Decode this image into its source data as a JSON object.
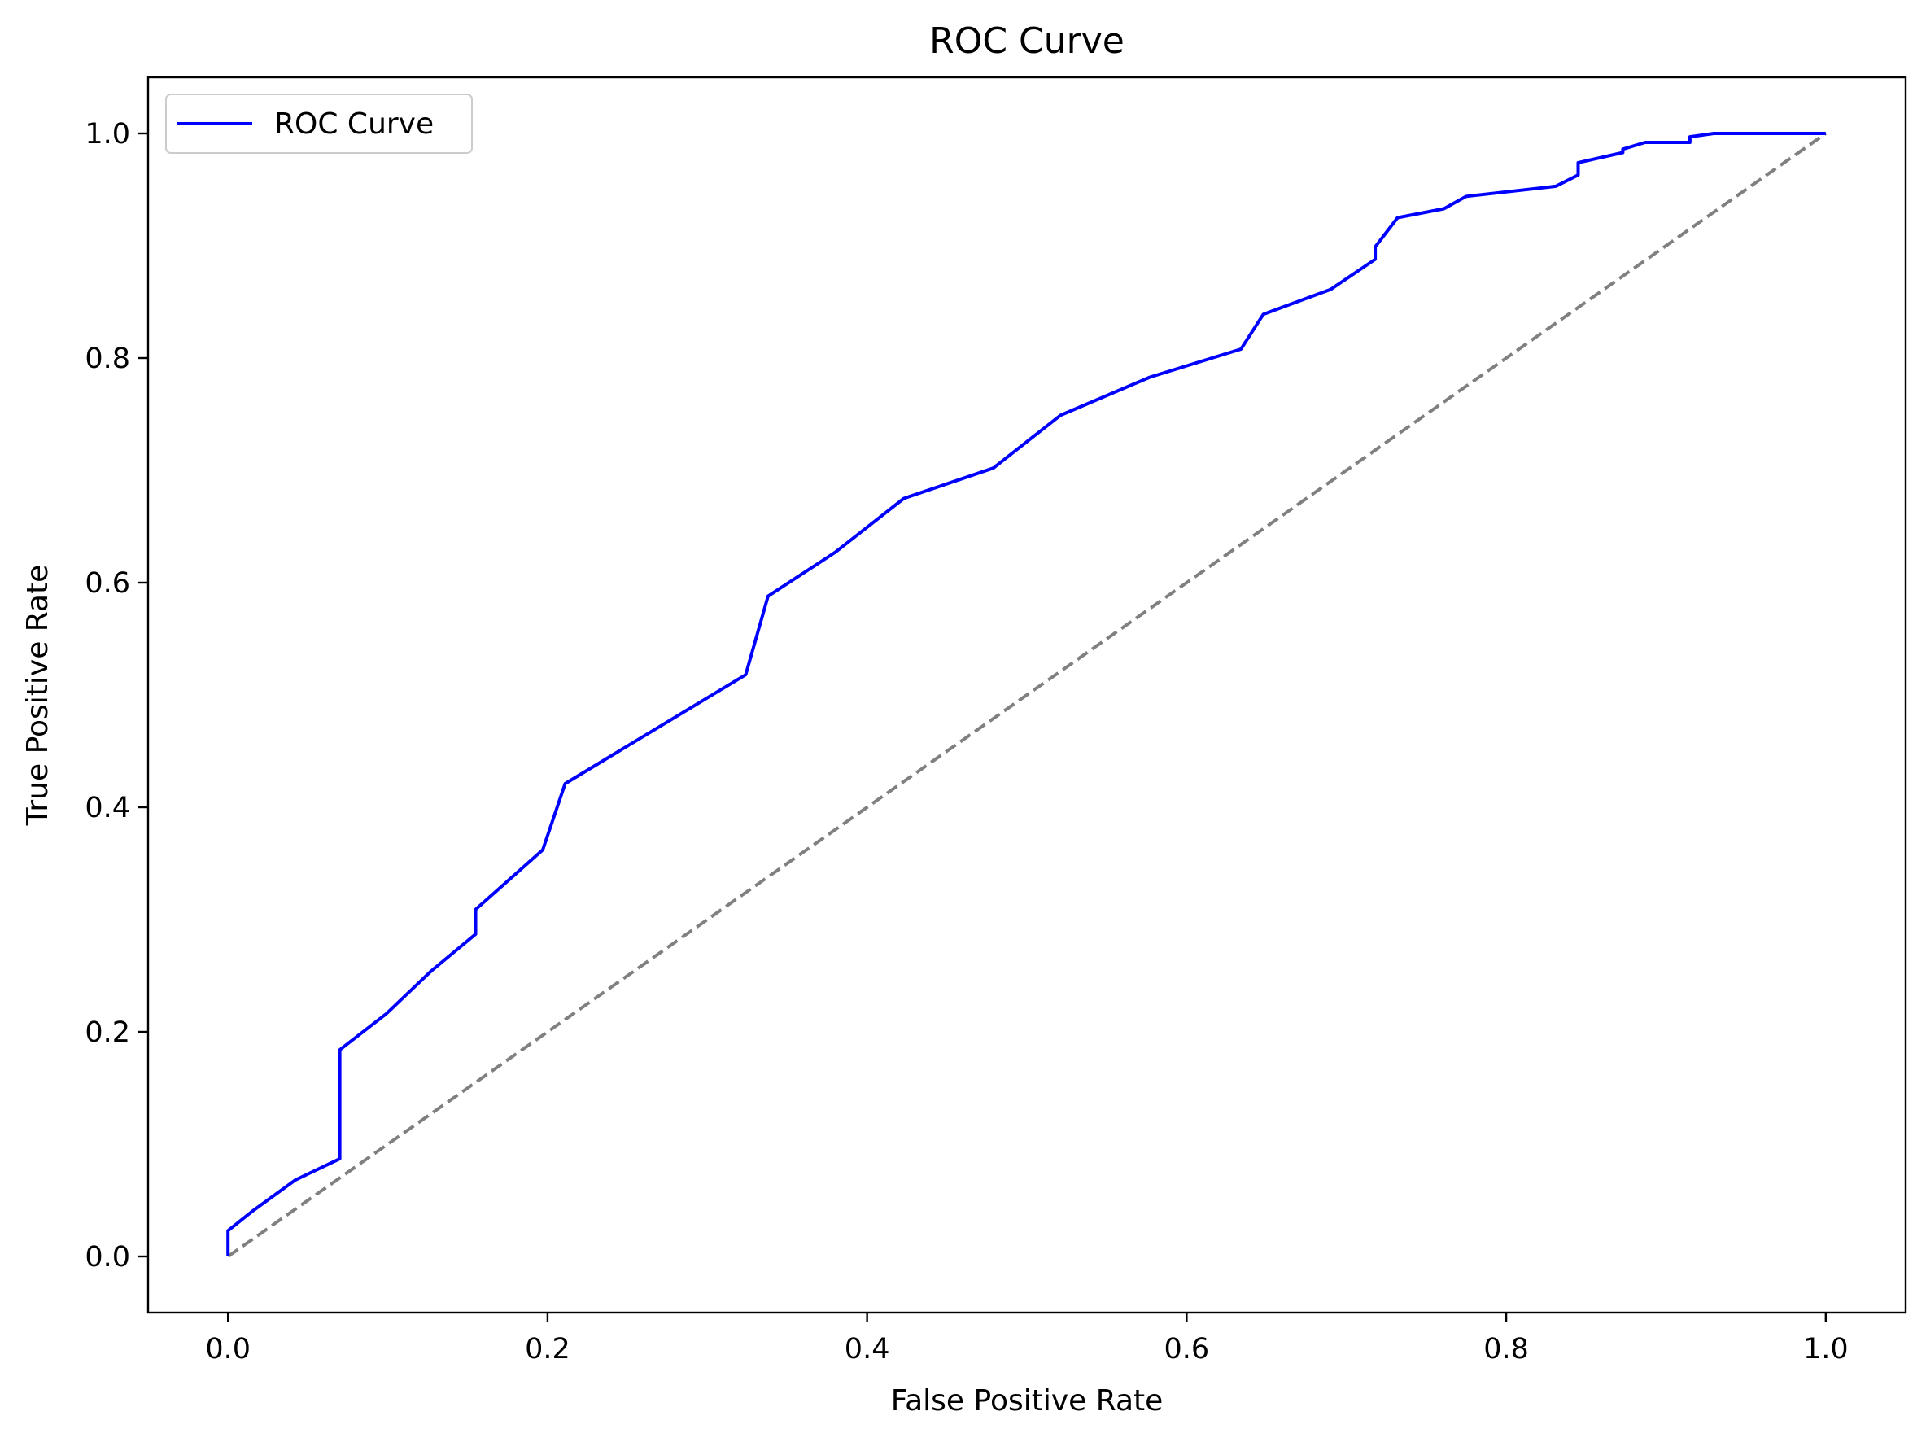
{
  "chart_data": {
    "type": "line",
    "title": "ROC Curve",
    "xlabel": "False Positive Rate",
    "ylabel": "True Positive Rate",
    "xlim": [
      -0.05,
      1.05
    ],
    "ylim": [
      -0.05,
      1.05
    ],
    "xticks": [
      0.0,
      0.2,
      0.4,
      0.6,
      0.8,
      1.0
    ],
    "xtick_labels": [
      "0.0",
      "0.2",
      "0.4",
      "0.6",
      "0.8",
      "1.0"
    ],
    "yticks": [
      0.0,
      0.2,
      0.4,
      0.6,
      0.8,
      1.0
    ],
    "ytick_labels": [
      "0.0",
      "0.2",
      "0.4",
      "0.6",
      "0.8",
      "1.0"
    ],
    "grid": false,
    "legend": {
      "position": "upper-left",
      "entries": [
        "ROC Curve"
      ]
    },
    "series": [
      {
        "name": "ROC Curve",
        "color": "#0000ff",
        "line_style": "solid",
        "x": [
          0.0,
          0.0,
          0.015,
          0.042,
          0.07,
          0.07,
          0.099,
          0.127,
          0.155,
          0.155,
          0.197,
          0.211,
          0.268,
          0.324,
          0.338,
          0.38,
          0.423,
          0.479,
          0.521,
          0.577,
          0.634,
          0.648,
          0.69,
          0.718,
          0.718,
          0.732,
          0.761,
          0.775,
          0.831,
          0.845,
          0.845,
          0.873,
          0.873,
          0.887,
          0.915,
          0.915,
          0.93,
          1.0
        ],
        "y": [
          0.0,
          0.023,
          0.04,
          0.068,
          0.087,
          0.184,
          0.216,
          0.254,
          0.287,
          0.309,
          0.362,
          0.421,
          0.47,
          0.518,
          0.588,
          0.627,
          0.675,
          0.702,
          0.749,
          0.783,
          0.808,
          0.839,
          0.861,
          0.888,
          0.899,
          0.925,
          0.933,
          0.944,
          0.953,
          0.963,
          0.974,
          0.983,
          0.986,
          0.992,
          0.992,
          0.997,
          1.0,
          1.0
        ]
      },
      {
        "name": "",
        "color": "#808080",
        "line_style": "dashed",
        "x": [
          0.0,
          1.0
        ],
        "y": [
          0.0,
          1.0
        ]
      }
    ]
  }
}
